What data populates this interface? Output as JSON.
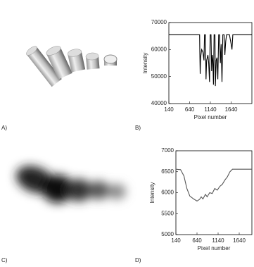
{
  "panel_labels": [
    "A)",
    "B)",
    "C)",
    "D)"
  ],
  "chart_data": [
    {
      "type": "line",
      "y_label": "Intensity",
      "x_label": "Pixel number",
      "color": "#000000",
      "xlim": [
        140,
        2140
      ],
      "xticks": [
        140,
        640,
        1140,
        1640
      ],
      "ylim": [
        40000,
        70000
      ],
      "yticks": [
        40000,
        50000,
        60000,
        70000
      ],
      "x": [
        140,
        880,
        885,
        895,
        905,
        930,
        960,
        985,
        1000,
        1020,
        1035,
        1050,
        1080,
        1100,
        1120,
        1135,
        1155,
        1170,
        1185,
        1200,
        1215,
        1230,
        1250,
        1260,
        1280,
        1300,
        1320,
        1340,
        1360,
        1380,
        1400,
        1420,
        1440,
        1470,
        1490,
        1510,
        1530,
        1600,
        1640,
        1660,
        1680,
        2140
      ],
      "values": [
        65500,
        65500,
        59000,
        51000,
        57000,
        60000,
        59000,
        56000,
        65500,
        65500,
        49000,
        56000,
        58000,
        55000,
        48000,
        65500,
        65500,
        52000,
        58000,
        56000,
        47000,
        65500,
        65500,
        46500,
        56000,
        57000,
        49000,
        65500,
        65500,
        55000,
        62000,
        48000,
        65500,
        65500,
        58000,
        63000,
        65500,
        65500,
        62000,
        60000,
        65500,
        65500
      ]
    },
    {
      "type": "line",
      "y_label": "Intensity",
      "x_label": "Pixel number",
      "color": "#555555",
      "xlim": [
        140,
        1940
      ],
      "xticks": [
        140,
        640,
        1140,
        1640
      ],
      "ylim": [
        5000,
        7000
      ],
      "yticks": [
        5000,
        5500,
        6000,
        6500,
        7000
      ],
      "x": [
        140,
        250,
        330,
        400,
        470,
        560,
        640,
        700,
        740,
        780,
        840,
        880,
        940,
        1000,
        1060,
        1120,
        1180,
        1240,
        1300,
        1360,
        1420,
        1480,
        1940
      ],
      "values": [
        6560,
        6550,
        6400,
        6100,
        5920,
        5850,
        5800,
        5840,
        5900,
        5850,
        5960,
        5900,
        6000,
        5980,
        6100,
        6060,
        6150,
        6200,
        6300,
        6380,
        6500,
        6560,
        6560
      ]
    }
  ]
}
